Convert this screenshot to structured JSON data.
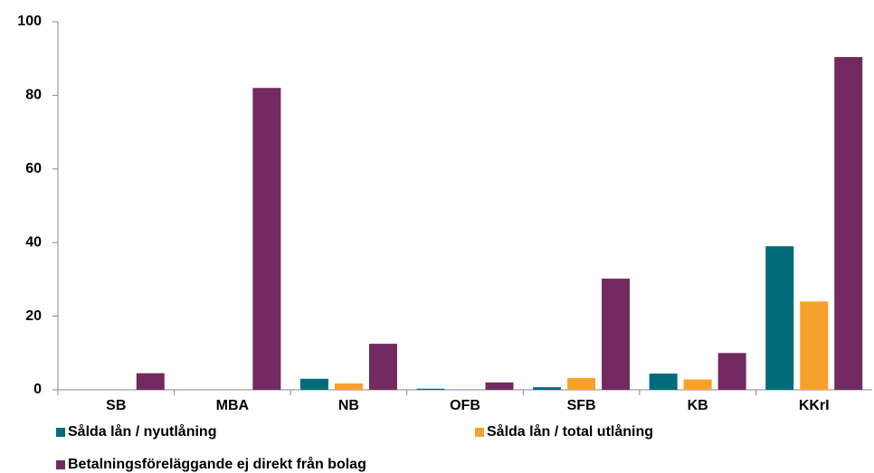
{
  "chart_data": {
    "type": "bar",
    "categories": [
      "SB",
      "MBA",
      "NB",
      "OFB",
      "SFB",
      "KB",
      "KKrI"
    ],
    "series": [
      {
        "name": "Sålda lån / nyutlåning",
        "color": "#006b7a",
        "values": [
          0,
          0,
          3,
          0.3,
          0.7,
          4.4,
          39
        ]
      },
      {
        "name": "Sålda lån / total utlåning",
        "color": "#f7a12b",
        "values": [
          0,
          0,
          1.7,
          0.2,
          3.2,
          2.8,
          24
        ]
      },
      {
        "name": "Betalningsföreläggande ej direkt från bolag",
        "color": "#722a60",
        "values": [
          4.5,
          82,
          12.5,
          2,
          30.2,
          10,
          90.4
        ]
      }
    ],
    "ylim": [
      0,
      100
    ],
    "yticks": [
      0,
      20,
      40,
      60,
      80,
      100
    ],
    "grid": false
  }
}
